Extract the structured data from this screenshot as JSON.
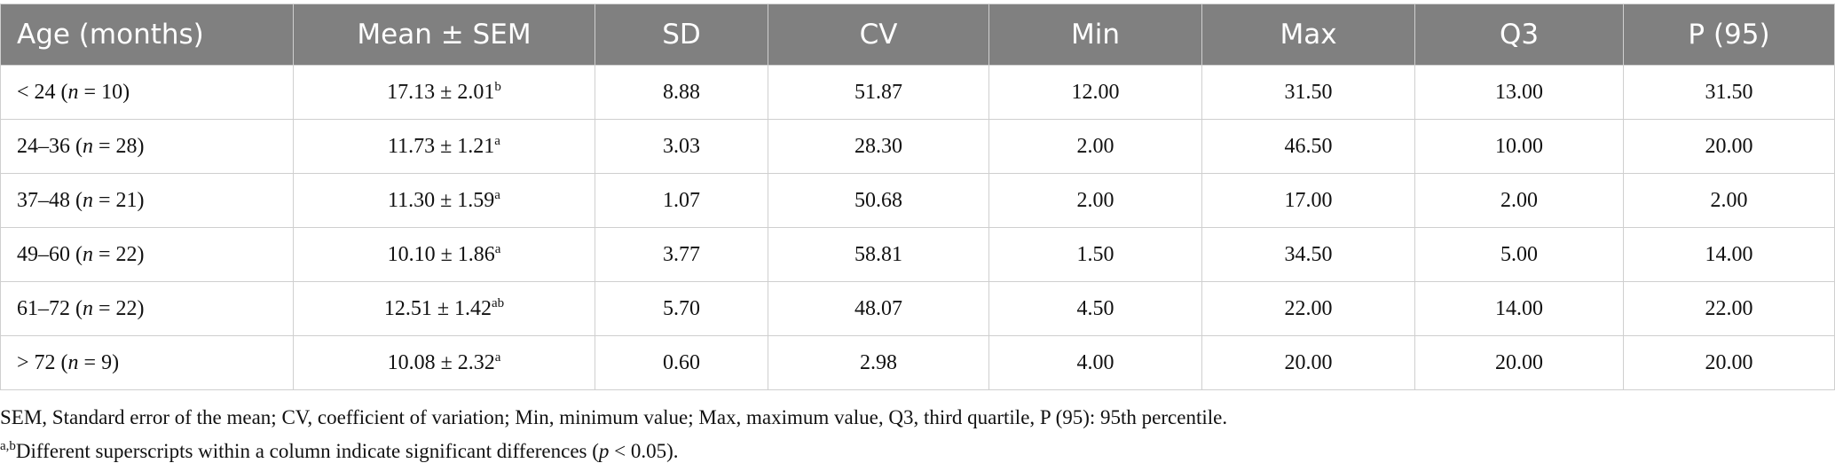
{
  "table": {
    "header": [
      "Age (months)",
      "Mean ± SEM",
      "SD",
      "CV",
      "Min",
      "Max",
      "Q3",
      "P (95)"
    ],
    "rows": [
      [
        [
          "< 24 (",
          "n",
          " = 10)"
        ],
        [
          "17.13 ± 2.01",
          "b"
        ],
        "8.88",
        "51.87",
        "12.00",
        "31.50",
        "13.00",
        "31.50"
      ],
      [
        [
          "24–36 (",
          "n",
          " = 28)"
        ],
        [
          "11.73 ± 1.21",
          "a"
        ],
        "3.03",
        "28.30",
        "2.00",
        "46.50",
        "10.00",
        "20.00"
      ],
      [
        [
          "37–48 (",
          "n",
          " = 21)"
        ],
        [
          "11.30 ± 1.59",
          "a"
        ],
        "1.07",
        "50.68",
        "2.00",
        "17.00",
        "2.00",
        "2.00"
      ],
      [
        [
          "49–60 (",
          "n",
          " = 22)"
        ],
        [
          "10.10 ± 1.86",
          "a"
        ],
        "3.77",
        "58.81",
        "1.50",
        "34.50",
        "5.00",
        "14.00"
      ],
      [
        [
          "61–72 (",
          "n",
          " = 22)"
        ],
        [
          "12.51 ± 1.42",
          "ab"
        ],
        "5.70",
        "48.07",
        "4.50",
        "22.00",
        "14.00",
        "22.00"
      ],
      [
        [
          "> 72 (",
          "n",
          " = 9)"
        ],
        [
          "10.08 ± 2.32",
          "a"
        ],
        "0.60",
        "2.98",
        "4.00",
        "20.00",
        "20.00",
        "20.00"
      ]
    ]
  },
  "footnotes": [
    "SEM, Standard error of the mean; CV, coefficient of variation; Min, minimum value; Max, maximum value, Q3, third quartile, P (95): 95th percentile.",
    [
      "a,b",
      "Different superscripts within a column indicate significant differences (",
      "p",
      " < 0.05)."
    ]
  ]
}
